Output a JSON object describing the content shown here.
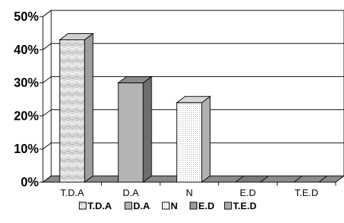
{
  "chart_data": {
    "type": "bar",
    "categories": [
      "T.D.A",
      "D.A",
      "N",
      "E.D",
      "T.E.D"
    ],
    "values": [
      43,
      30,
      24,
      0,
      0
    ],
    "ylim": [
      0,
      50
    ],
    "yticks": [
      "0%",
      "10%",
      "20%",
      "30%",
      "40%",
      "50%"
    ],
    "grid": true,
    "legend_placement": "bottom",
    "legend": [
      "T.D.A",
      "D.A",
      "N",
      "E.D",
      "T.E.D"
    ],
    "style_3d": true
  }
}
